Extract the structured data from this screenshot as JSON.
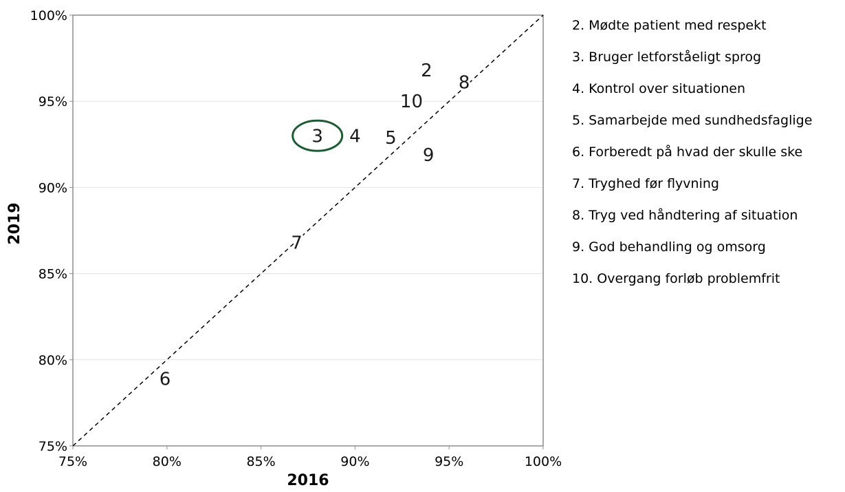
{
  "chart_data": {
    "type": "scatter",
    "xlabel": "2016",
    "ylabel": "2019",
    "xlim": [
      75,
      100
    ],
    "ylim": [
      75,
      100
    ],
    "x_ticks": [
      "75%",
      "80%",
      "85%",
      "90%",
      "95%",
      "100%"
    ],
    "y_ticks": [
      "100%",
      "95%",
      "90%",
      "85%",
      "80%",
      "75%"
    ],
    "grid": "horizontal",
    "reference_line": {
      "style": "dashed",
      "from": [
        75,
        75
      ],
      "to": [
        100,
        100
      ]
    },
    "points": [
      {
        "label": "2",
        "x": 93.8,
        "y": 96.8
      },
      {
        "label": "8",
        "x": 95.8,
        "y": 96.1
      },
      {
        "label": "10",
        "x": 93.0,
        "y": 95.0
      },
      {
        "label": "3",
        "x": 88.0,
        "y": 93.0,
        "highlighted": true
      },
      {
        "label": "4",
        "x": 90.0,
        "y": 93.0
      },
      {
        "label": "5",
        "x": 91.9,
        "y": 92.9
      },
      {
        "label": "9",
        "x": 93.9,
        "y": 91.9
      },
      {
        "label": "7",
        "x": 86.9,
        "y": 86.8
      },
      {
        "label": "6",
        "x": 79.9,
        "y": 78.9
      }
    ],
    "highlight_color": "#1e5b34",
    "legend": [
      "2. Mødte patient med respekt",
      "3. Bruger letforståeligt sprog",
      "4. Kontrol over situationen",
      "5. Samarbejde med sundhedsfaglige",
      "6. Forberedt på hvad der skulle ske",
      "7. Tryghed før flyvning",
      "8. Tryg ved håndtering af situation",
      "9. God behandling og omsorg",
      "10. Overgang forløb problemfrit"
    ],
    "legend_placement": "right"
  }
}
